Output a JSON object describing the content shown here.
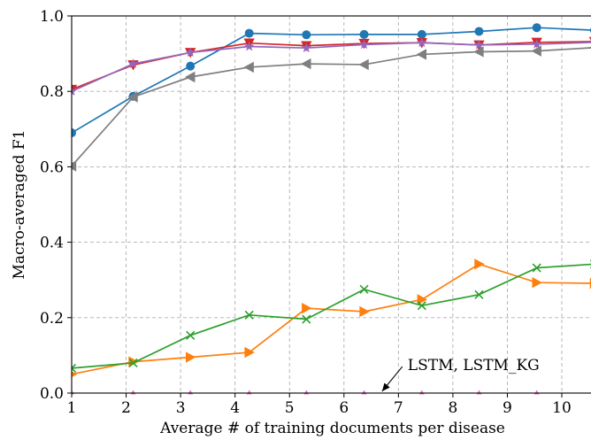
{
  "chart_data": {
    "type": "line",
    "xlabel": "Average # of training documents per disease",
    "ylabel": "Macro-averaged F1",
    "xlim": [
      1,
      10.5
    ],
    "ylim": [
      0,
      1.0
    ],
    "x_ticks": [
      "1",
      "2",
      "3",
      "4",
      "5",
      "6",
      "7",
      "8",
      "9",
      "10"
    ],
    "y_ticks": [
      "0.0",
      "0.2",
      "0.4",
      "0.6",
      "0.8",
      "1.0"
    ],
    "x_tick_values": [
      1,
      2,
      3,
      4,
      5,
      6,
      7,
      8,
      9,
      10
    ],
    "y_tick_values": [
      0,
      0.2,
      0.4,
      0.6,
      0.8,
      1.0
    ],
    "grid": true,
    "series": [
      {
        "color": "#1f77b4",
        "marker": "circle",
        "x": [
          1,
          2.13,
          3.18,
          4.26,
          5.31,
          6.37,
          7.43,
          8.48,
          9.54,
          10.6
        ],
        "y": [
          0.69,
          0.787,
          0.867,
          0.954,
          0.95,
          0.951,
          0.951,
          0.959,
          0.969,
          0.962
        ]
      },
      {
        "color": "#ff7f0e",
        "marker": "triangle-right",
        "x": [
          1,
          2.13,
          3.18,
          4.26,
          5.31,
          6.37,
          7.43,
          8.48,
          9.54,
          10.6
        ],
        "y": [
          0.05,
          0.083,
          0.095,
          0.108,
          0.225,
          0.216,
          0.248,
          0.342,
          0.293,
          0.291
        ]
      },
      {
        "color": "#2ca02c",
        "marker": "x",
        "x": [
          1,
          2.13,
          3.18,
          4.26,
          5.31,
          6.37,
          7.43,
          8.48,
          9.54,
          10.6
        ],
        "y": [
          0.066,
          0.08,
          0.153,
          0.207,
          0.196,
          0.275,
          0.232,
          0.261,
          0.332,
          0.342
        ]
      },
      {
        "color": "#d62728",
        "marker": "triangle-down",
        "x": [
          1,
          2.13,
          3.18,
          4.26,
          5.31,
          6.37,
          7.43,
          8.48,
          9.54,
          10.6
        ],
        "y": [
          0.805,
          0.87,
          0.903,
          0.928,
          0.921,
          0.927,
          0.929,
          0.923,
          0.93,
          0.932
        ]
      },
      {
        "color": "#9467bd",
        "marker": "star",
        "x": [
          1,
          2.13,
          3.18,
          4.26,
          5.31,
          6.37,
          7.43,
          8.48,
          9.54,
          10.6
        ],
        "y": [
          0.8,
          0.873,
          0.903,
          0.919,
          0.915,
          0.924,
          0.929,
          0.923,
          0.925,
          0.93
        ]
      },
      {
        "color": "#7f7f7f",
        "marker": "triangle-left",
        "x": [
          1,
          2.13,
          3.18,
          4.26,
          5.31,
          6.37,
          7.43,
          8.48,
          9.54,
          10.6
        ],
        "y": [
          0.602,
          0.785,
          0.838,
          0.864,
          0.873,
          0.871,
          0.898,
          0.905,
          0.907,
          0.916
        ]
      },
      {
        "color": "#e377c2",
        "marker": "triangle-up",
        "x": [
          1,
          2.13,
          3.18,
          4.26,
          5.31,
          6.37,
          7.43,
          8.48,
          9.54,
          10.6
        ],
        "y": [
          0,
          0,
          0,
          0,
          0,
          0,
          0,
          0,
          0,
          0
        ]
      }
    ],
    "annotations": [
      {
        "text": "LSTM, LSTM_KG",
        "arrow_to": [
          6.7,
          0.0
        ],
        "text_at": [
          7.3,
          0.075
        ]
      }
    ]
  }
}
